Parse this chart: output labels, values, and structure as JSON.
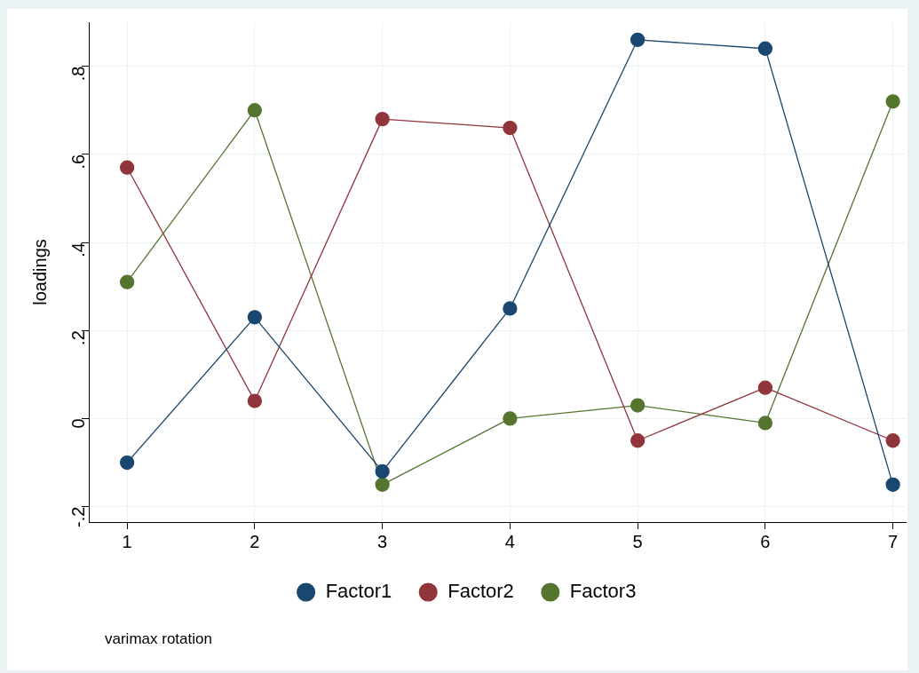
{
  "chart_data": {
    "type": "line",
    "ylabel": "loadings",
    "x": [
      1,
      2,
      3,
      4,
      5,
      6,
      7
    ],
    "series": [
      {
        "name": "Factor1",
        "color": "#1a476f",
        "values": [
          -0.1,
          0.23,
          -0.12,
          0.25,
          0.86,
          0.84,
          -0.15
        ]
      },
      {
        "name": "Factor2",
        "color": "#90353b",
        "values": [
          0.57,
          0.04,
          0.68,
          0.66,
          -0.05,
          0.07,
          -0.05
        ]
      },
      {
        "name": "Factor3",
        "color": "#55752f",
        "values": [
          0.31,
          0.7,
          -0.15,
          0.0,
          0.03,
          -0.01,
          0.72
        ]
      }
    ],
    "xlim": [
      0.7,
      7.1
    ],
    "xticks": [
      1,
      2,
      3,
      4,
      5,
      6,
      7
    ],
    "ylim": [
      -0.235,
      0.9
    ],
    "yticks": [
      {
        "value": -0.2,
        "label": "-.2"
      },
      {
        "value": 0,
        "label": "0"
      },
      {
        "value": 0.2,
        "label": ".2"
      },
      {
        "value": 0.4,
        "label": ".4"
      },
      {
        "value": 0.6,
        "label": ".6"
      },
      {
        "value": 0.8,
        "label": ".8"
      }
    ],
    "grid": true,
    "legend": "bottom",
    "marker": "circle",
    "line_style": "solid",
    "annotations": [
      "varimax rotation"
    ]
  }
}
